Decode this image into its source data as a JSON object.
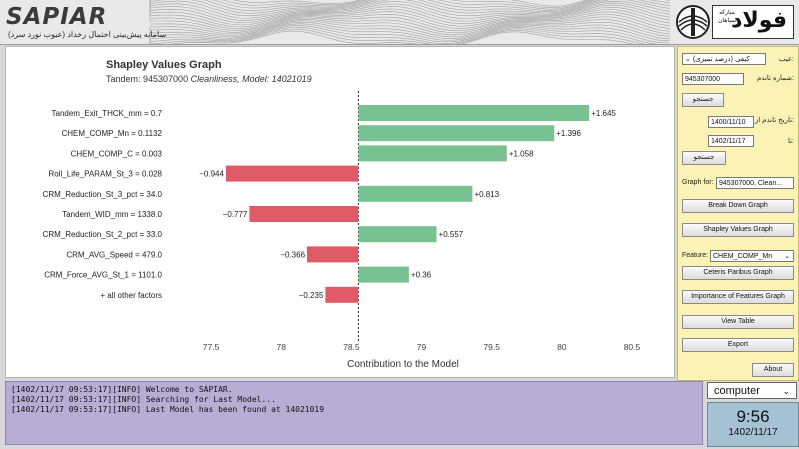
{
  "header": {
    "app_name": "SAPIAR",
    "subtitle": "سامانه پیش‌بینی احتمال رخداد (عیوب نورد سرد)",
    "brand_word": "فولاد",
    "brand_small": "مبارکه سپاهان"
  },
  "chart": {
    "title": "Shapley Values Graph",
    "subtitle_prefix": "Tandem: 945307000",
    "subtitle_model": "Cleanliness, Model: 14021019"
  },
  "chart_data": {
    "type": "bar",
    "orientation": "horizontal",
    "title": "Shapley Values Graph",
    "xlabel": "Contribution to the Model",
    "baseline": 78.55,
    "xlim": [
      77.25,
      80.6
    ],
    "xticks": [
      "77.5",
      "78",
      "78.5",
      "79",
      "79.5",
      "80",
      "80.5"
    ],
    "categories": [
      "Tandem_Exit_THCK_mm = 0.7",
      "CHEM_COMP_Mn = 0.1132",
      "CHEM_COMP_C = 0.003",
      "Roll_Life_PARAM_St_3 = 0.028",
      "CRM_Reduction_St_3_pct = 34.0",
      "Tandem_WID_mm = 1338.0",
      "CRM_Reduction_St_2_pct = 33.0",
      "CRM_AVG_Speed = 479.0",
      "CRM_Force_AVG_St_1 = 1101.0",
      "+ all other factors"
    ],
    "values": [
      1.645,
      1.396,
      1.058,
      -0.944,
      0.813,
      -0.777,
      0.557,
      -0.366,
      0.36,
      -0.235
    ],
    "labels": [
      "+1.645",
      "+1.396",
      "+1.058",
      "−0.944",
      "+0.813",
      "−0.777",
      "+0.557",
      "−0.366",
      "+0.36",
      "−0.235"
    ],
    "colors": {
      "positive": "#78c191",
      "negative": "#dd5a66"
    }
  },
  "panel": {
    "defect_label": "عیب:",
    "defect_value": "کیفی (درصد تمیزی)",
    "coil_label": "شماره تاندم:",
    "coil_value": "945307000",
    "search_btn": "جستجو",
    "date_from_label": "تاریخ تاندم از:",
    "date_from": "1400/11/10",
    "date_to_label": "تا:",
    "date_to": "1402/11/17",
    "search_btn2": "جستجو",
    "graph_for_label": "Graph for:",
    "graph_for_value": "945307000, Clean...",
    "break_down_btn": "Break Down Graph",
    "shapley_btn": "Shapley Values Graph",
    "feature_label": "Feature:",
    "feature_value": "CHEM_COMP_Mn",
    "ceteris_btn": "Ceteris Paribus Graph",
    "importance_btn": "Importance of Features Graph",
    "view_table_btn": "View Table",
    "export_btn": "Export",
    "about_btn": "About"
  },
  "log": {
    "lines": [
      "[1402/11/17 09:53:17][INFO] Welcome to SAPIAR.",
      "[1402/11/17 09:53:17][INFO] Searching for Last Model...",
      "[1402/11/17 09:53:17][INFO] Last Model has been found at 14021019"
    ]
  },
  "status": {
    "user": "computer",
    "time": "9:56",
    "date": "1402/11/17"
  }
}
